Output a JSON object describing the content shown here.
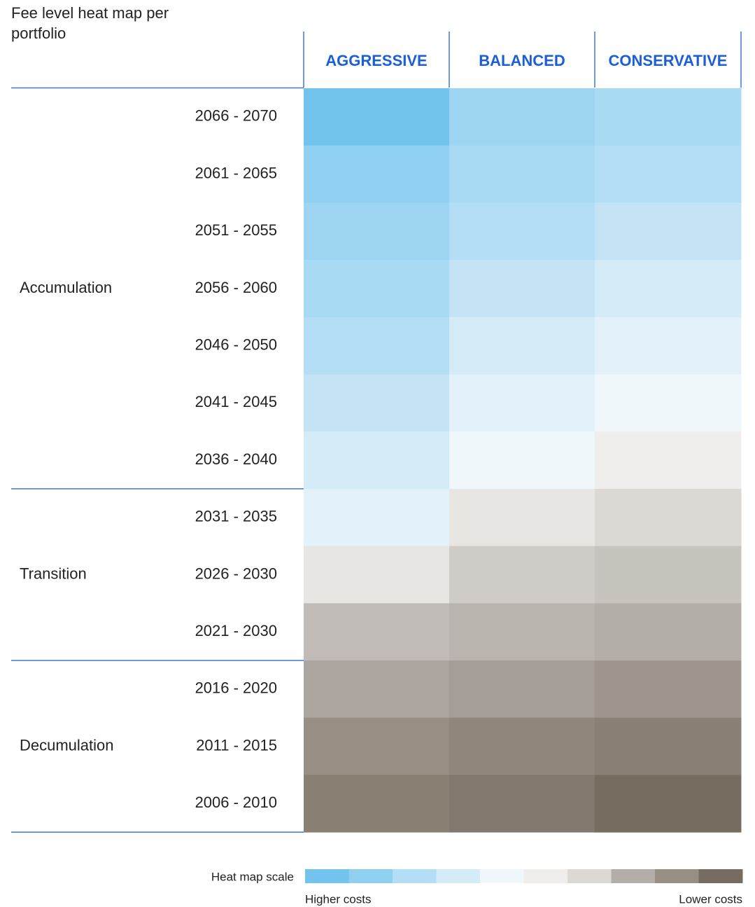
{
  "title": "Fee level heat map per portfolio",
  "columns": [
    "AGGRESSIVE",
    "BALANCED",
    "CONSERVATIVE"
  ],
  "groups": [
    {
      "label": "Accumulation",
      "rows": [
        {
          "label": "2066 - 2070",
          "colors": [
            "#72c3ee",
            "#9dd4f2",
            "#a8dbf4"
          ]
        },
        {
          "label": "2061 - 2065",
          "colors": [
            "#8fcff0",
            "#a8daf4",
            "#b3def5"
          ]
        },
        {
          "label": "2051 - 2055",
          "colors": [
            "#9dd4f2",
            "#b3def5",
            "#c4e4f6"
          ]
        },
        {
          "label": "2056 - 2060",
          "colors": [
            "#a8daf4",
            "#c4e4f6",
            "#d4ebf8"
          ]
        },
        {
          "label": "2046 - 2050",
          "colors": [
            "#b3def5",
            "#d4ebf8",
            "#e2f1fa"
          ]
        },
        {
          "label": "2041 - 2045",
          "colors": [
            "#c4e4f6",
            "#e2f1fa",
            "#f0f7fb"
          ]
        },
        {
          "label": "2036 - 2040",
          "colors": [
            "#d4ebf8",
            "#f0f7fb",
            "#f0eeec"
          ]
        }
      ]
    },
    {
      "label": "Transition",
      "rows": [
        {
          "label": "2031 - 2035",
          "colors": [
            "#e2f1fa",
            "#e8e6e3",
            "#dcd8d4"
          ]
        },
        {
          "label": "2026 - 2030",
          "colors": [
            "#e8e6e3",
            "#cfcbc6",
            "#c7c3bd"
          ]
        },
        {
          "label": "2021 - 2030",
          "colors": [
            "#c0bbb6",
            "#b9b4ae",
            "#b3aea8"
          ]
        }
      ]
    },
    {
      "label": "Decumulation",
      "rows": [
        {
          "label": "2016 - 2020",
          "colors": [
            "#aca59f",
            "#a59d97",
            "#9e958e"
          ]
        },
        {
          "label": "2011 - 2015",
          "colors": [
            "#978e84",
            "#8f877c",
            "#8a8176"
          ]
        },
        {
          "label": "2006 - 2010",
          "colors": [
            "#8a8175",
            "#82796e",
            "#776c60"
          ]
        }
      ]
    }
  ],
  "scale": {
    "label": "Heat map scale",
    "colors": [
      "#72c3ee",
      "#8fcff0",
      "#b3def5",
      "#d4ebf8",
      "#f0f7fb",
      "#f0eeec",
      "#dcd8d4",
      "#b3aea8",
      "#978e84",
      "#776c60"
    ],
    "low_label": "Higher costs",
    "high_label": "Lower costs"
  }
}
